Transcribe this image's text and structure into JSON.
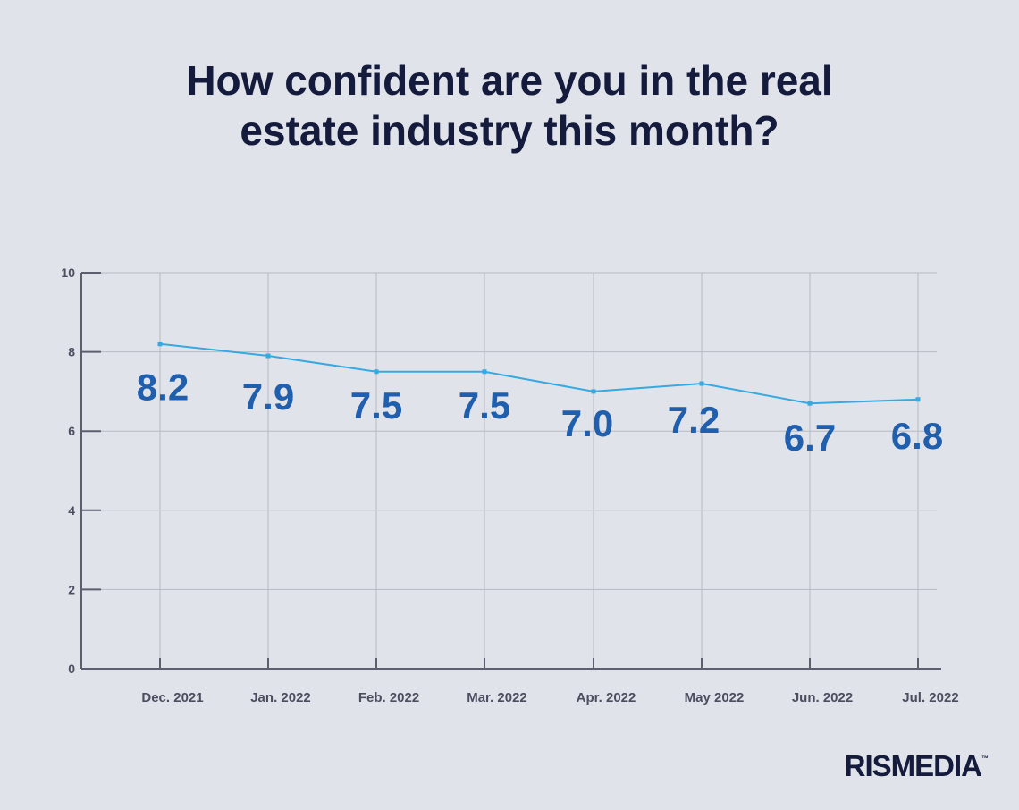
{
  "title_line1": "How confident are you in the real",
  "title_line2": "estate industry this month?",
  "brand": {
    "name": "RISMEDIA",
    "mark": "™"
  },
  "colors": {
    "line": "#36a9e1",
    "label": "#1f5fad",
    "title": "#141b3c",
    "axis": "#5c5f70",
    "grid": "#b7b9c2"
  },
  "chart_data": {
    "type": "line",
    "title": "How confident are you in the real estate industry this month?",
    "categories": [
      "Dec. 2021",
      "Jan. 2022",
      "Feb. 2022",
      "Mar. 2022",
      "Apr. 2022",
      "May 2022",
      "Jun. 2022",
      "Jul. 2022"
    ],
    "values": [
      8.2,
      7.9,
      7.5,
      7.5,
      7.0,
      7.2,
      6.7,
      6.8
    ],
    "value_labels": [
      "8.2",
      "7.9",
      "7.5",
      "7.5",
      "7.0",
      "7.2",
      "6.7",
      "6.8"
    ],
    "yticks": [
      "0",
      "2",
      "4",
      "6",
      "8",
      "10"
    ],
    "ylim": [
      0,
      10
    ],
    "xlabel": "",
    "ylabel": "",
    "grid": true
  }
}
